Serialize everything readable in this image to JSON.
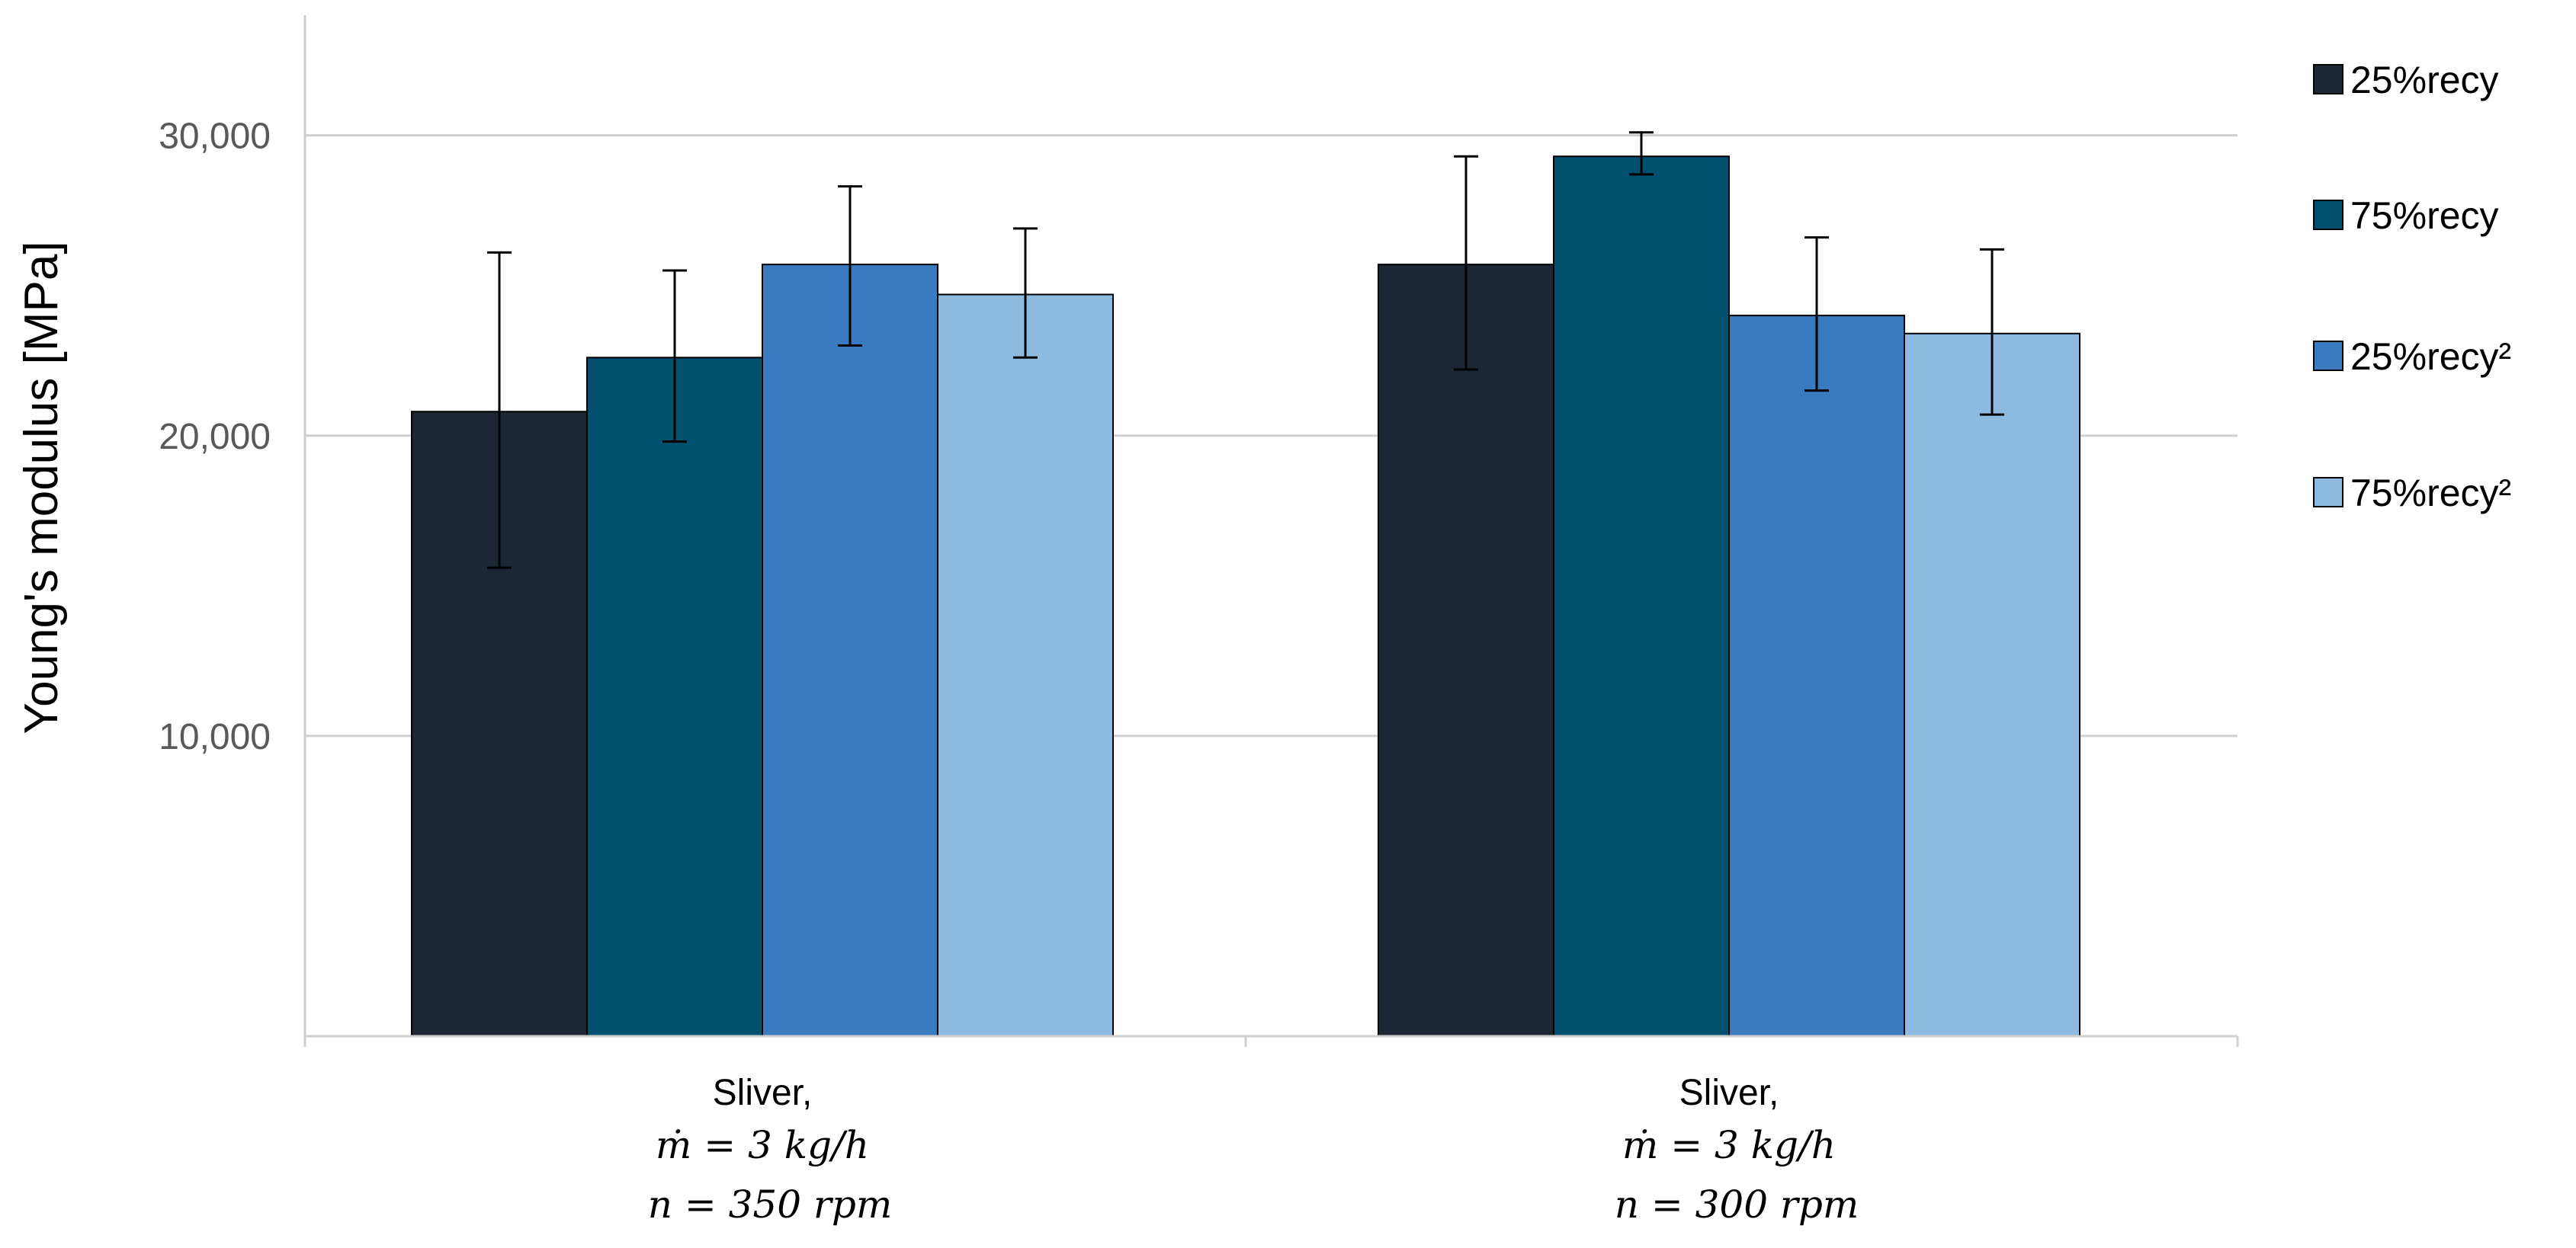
{
  "chart_data": {
    "type": "bar",
    "title": "",
    "ylabel": "Young's modulus [MPa]",
    "xlabel": "",
    "ylim": [
      0,
      34000
    ],
    "yticks": [
      10000,
      20000,
      30000
    ],
    "ytick_labels": [
      "10,000",
      "20,000",
      "30,000"
    ],
    "grid": true,
    "legend_position": "right",
    "categories": [
      {
        "line1": "Sliver,",
        "line2": "ṁ = 3 kg/h",
        "line3": "n = 350 rpm"
      },
      {
        "line1": "Sliver,",
        "line2": "ṁ = 3 kg/h",
        "line3": "n = 300 rpm"
      }
    ],
    "series": [
      {
        "name": "25%recy",
        "color": "#1c2733",
        "values": [
          20800,
          25700
        ],
        "err_low": [
          15600,
          22200
        ],
        "err_high": [
          26100,
          29300
        ]
      },
      {
        "name": "75%recy",
        "color": "#02506d",
        "values": [
          22600,
          29300
        ],
        "err_low": [
          19800,
          28700
        ],
        "err_high": [
          25500,
          30100
        ]
      },
      {
        "name": "25%recy²",
        "color": "#3a7bbf",
        "values": [
          25700,
          24000
        ],
        "err_low": [
          23000,
          21500
        ],
        "err_high": [
          28300,
          26600
        ]
      },
      {
        "name": "75%recy²",
        "color": "#8fbae0",
        "values": [
          24700,
          23400
        ],
        "err_low": [
          22600,
          20700
        ],
        "err_high": [
          26900,
          26200
        ]
      }
    ]
  }
}
